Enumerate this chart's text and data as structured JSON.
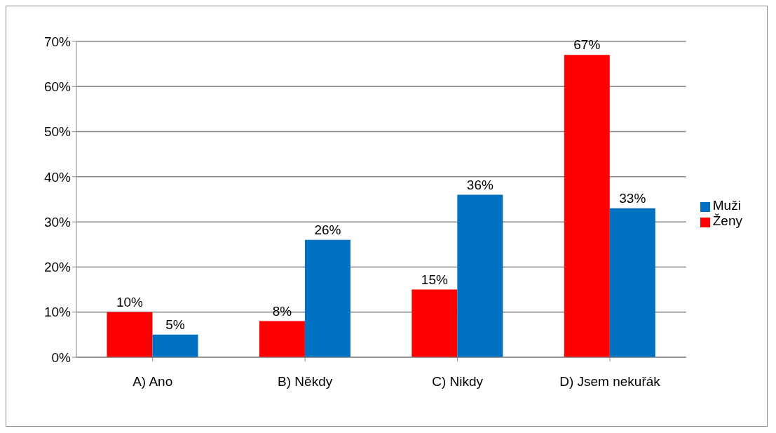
{
  "chart_data": {
    "type": "bar",
    "categories": [
      "A) Ano",
      "B) Někdy",
      "C) Nikdy",
      "D) Jsem nekuřák"
    ],
    "series": [
      {
        "name": "Ženy",
        "color": "#ff0000",
        "values": [
          10,
          8,
          15,
          67
        ],
        "value_labels": [
          "10%",
          "8%",
          "15%",
          "67%"
        ]
      },
      {
        "name": "Muži",
        "color": "#0070c0",
        "values": [
          5,
          26,
          36,
          33
        ],
        "value_labels": [
          "5%",
          "26%",
          "36%",
          "33%"
        ]
      }
    ],
    "ylim": [
      0,
      70
    ],
    "yticks": [
      {
        "value": 0,
        "label": "0%"
      },
      {
        "value": 10,
        "label": "10%"
      },
      {
        "value": 20,
        "label": "20%"
      },
      {
        "value": 30,
        "label": "30%"
      },
      {
        "value": 40,
        "label": "40%"
      },
      {
        "value": 50,
        "label": "50%"
      },
      {
        "value": 60,
        "label": "60%"
      },
      {
        "value": 70,
        "label": "70%"
      }
    ],
    "grid": "y",
    "legend": "right"
  }
}
